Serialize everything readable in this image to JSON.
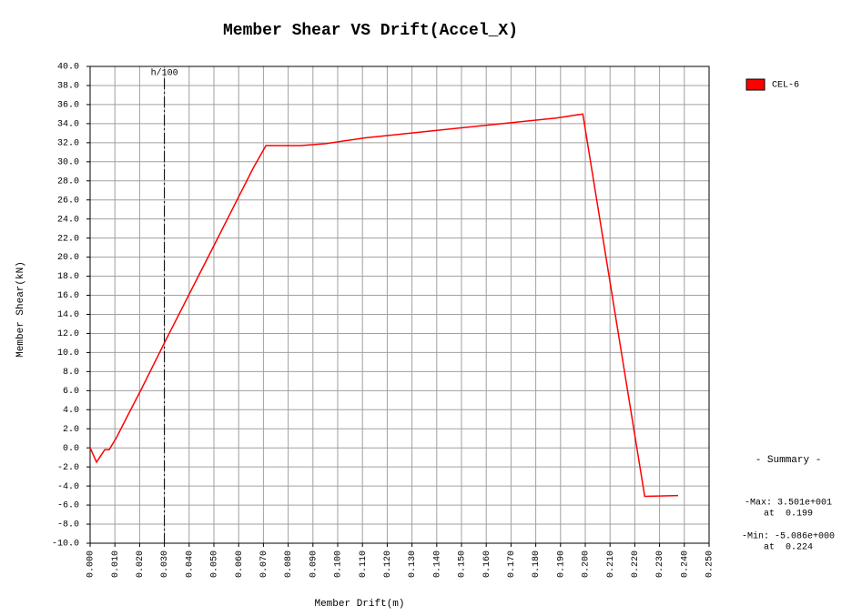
{
  "chart_data": {
    "type": "line",
    "title": "Member Shear VS Drift(Accel_X)",
    "x_label": "Member Drift(m)",
    "y_label": "Member Shear(kN)",
    "xlim": [
      0,
      0.25
    ],
    "ylim": [
      -10,
      40
    ],
    "xticks": [
      {
        "value": 0,
        "label": "0.000"
      },
      {
        "value": 0.01,
        "label": "0.010"
      },
      {
        "value": 0.02,
        "label": "0.020"
      },
      {
        "value": 0.03,
        "label": "0.030"
      },
      {
        "value": 0.04,
        "label": "0.040"
      },
      {
        "value": 0.05,
        "label": "0.050"
      },
      {
        "value": 0.06,
        "label": "0.060"
      },
      {
        "value": 0.07,
        "label": "0.070"
      },
      {
        "value": 0.08,
        "label": "0.080"
      },
      {
        "value": 0.09,
        "label": "0.090"
      },
      {
        "value": 0.1,
        "label": "0.100"
      },
      {
        "value": 0.11,
        "label": "0.110"
      },
      {
        "value": 0.12,
        "label": "0.120"
      },
      {
        "value": 0.13,
        "label": "0.130"
      },
      {
        "value": 0.14,
        "label": "0.140"
      },
      {
        "value": 0.15,
        "label": "0.150"
      },
      {
        "value": 0.16,
        "label": "0.160"
      },
      {
        "value": 0.17,
        "label": "0.170"
      },
      {
        "value": 0.18,
        "label": "0.180"
      },
      {
        "value": 0.19,
        "label": "0.190"
      },
      {
        "value": 0.2,
        "label": "0.200"
      },
      {
        "value": 0.21,
        "label": "0.210"
      },
      {
        "value": 0.22,
        "label": "0.220"
      },
      {
        "value": 0.23,
        "label": "0.230"
      },
      {
        "value": 0.24,
        "label": "0.240"
      },
      {
        "value": 0.25,
        "label": "0.250"
      }
    ],
    "yticks": [
      {
        "value": 40,
        "label": "40.0"
      },
      {
        "value": 38,
        "label": "38.0"
      },
      {
        "value": 36,
        "label": "36.0"
      },
      {
        "value": 34,
        "label": "34.0"
      },
      {
        "value": 32,
        "label": "32.0"
      },
      {
        "value": 30,
        "label": "30.0"
      },
      {
        "value": 28,
        "label": "28.0"
      },
      {
        "value": 26,
        "label": "26.0"
      },
      {
        "value": 24,
        "label": "24.0"
      },
      {
        "value": 22,
        "label": "22.0"
      },
      {
        "value": 20,
        "label": "20.0"
      },
      {
        "value": 18,
        "label": "18.0"
      },
      {
        "value": 16,
        "label": "16.0"
      },
      {
        "value": 14,
        "label": "14.0"
      },
      {
        "value": 12,
        "label": "12.0"
      },
      {
        "value": 10,
        "label": "10.0"
      },
      {
        "value": 8,
        "label": "8.0"
      },
      {
        "value": 6,
        "label": "6.0"
      },
      {
        "value": 4,
        "label": "4.0"
      },
      {
        "value": 2,
        "label": "2.0"
      },
      {
        "value": 0,
        "label": "0.0"
      },
      {
        "value": -2,
        "label": "-2.0"
      },
      {
        "value": -4,
        "label": "-4.0"
      },
      {
        "value": -6,
        "label": "-6.0"
      },
      {
        "value": -8,
        "label": "-8.0"
      },
      {
        "value": -10,
        "label": "-10.0"
      }
    ],
    "grid": true,
    "series": [
      {
        "name": "CEL-6",
        "color": "#ff0000",
        "x": [
          0,
          0.0026,
          0.0059,
          0.0077,
          0.0107,
          0.0154,
          0.0206,
          0.0298,
          0.05,
          0.0658,
          0.071,
          0.085,
          0.0952,
          0.1107,
          0.1886,
          0.199,
          0.224,
          0.2375
        ],
        "values": [
          0,
          -1.5,
          -0.2,
          -0.2,
          1.1,
          3.5,
          6.1,
          10.9,
          21.2,
          29.3,
          31.7,
          31.7,
          31.9,
          32.5,
          34.6,
          35.01,
          -5.086,
          -5.0
        ]
      }
    ],
    "reference_line": {
      "label": "h/100",
      "x": 0.03
    },
    "summary": {
      "title": "- Summary -",
      "max": "-Max: 3.501e+001",
      "max_at": "at  0.199",
      "min": "-Min: -5.086e+000",
      "min_at": "at  0.224"
    }
  }
}
